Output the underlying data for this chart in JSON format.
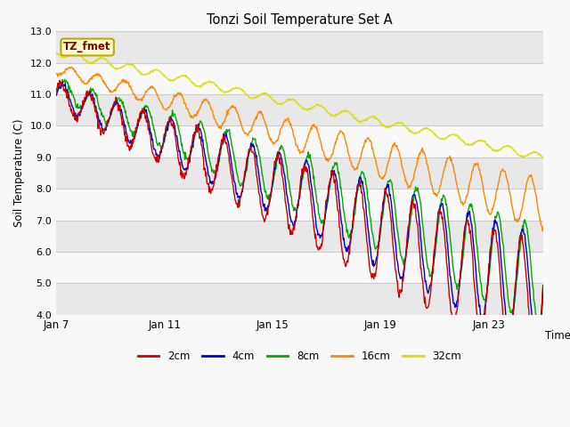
{
  "title": "Tonzi Soil Temperature Set A",
  "xlabel": "Time",
  "ylabel": "Soil Temperature (C)",
  "ylim": [
    4.0,
    13.0
  ],
  "yticks": [
    4.0,
    5.0,
    6.0,
    7.0,
    8.0,
    9.0,
    10.0,
    11.0,
    12.0,
    13.0
  ],
  "colors": {
    "2cm": "#cc0000",
    "4cm": "#0000cc",
    "8cm": "#00aa00",
    "16cm": "#ff8800",
    "32cm": "#dddd00"
  },
  "legend_label": "TZ_fmet",
  "legend_box_color": "#ffffcc",
  "legend_box_border": "#bbaa00",
  "legend_text_color": "#880000",
  "stripe_gray": "#e8e8e8",
  "stripe_white": "#f8f8f8",
  "line_color": "#cccccc",
  "line_width": 1.0,
  "figsize": [
    6.4,
    4.8
  ],
  "dpi": 100
}
